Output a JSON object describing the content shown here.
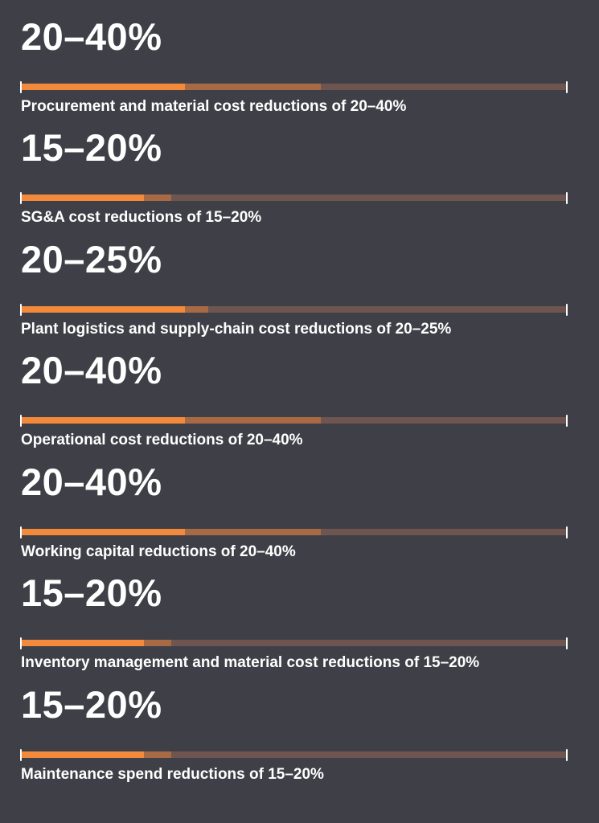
{
  "chart_data": {
    "type": "bar",
    "scale_max_percent": 100,
    "colors": {
      "background": "#3f4047",
      "fill_low": "#f3893b",
      "fill_range": "#a86a45",
      "track": "#6e5550",
      "text": "#ffffff"
    },
    "items": [
      {
        "value_label": "20–40%",
        "low": 20,
        "high": 40,
        "caption": "Procurement and material cost reductions of 20–40%"
      },
      {
        "value_label": "15–20%",
        "low": 15,
        "high": 20,
        "caption": "SG&A cost reductions of 15–20%"
      },
      {
        "value_label": "20–25%",
        "low": 20,
        "high": 25,
        "caption": "Plant logistics and supply-chain cost reductions of 20–25%"
      },
      {
        "value_label": "20–40%",
        "low": 20,
        "high": 40,
        "caption": "Operational cost reductions of 20–40%"
      },
      {
        "value_label": "20–40%",
        "low": 20,
        "high": 40,
        "caption": "Working capital reductions of 20–40%"
      },
      {
        "value_label": "15–20%",
        "low": 15,
        "high": 20,
        "caption": "Inventory management and material cost reductions of 15–20%"
      },
      {
        "value_label": "15–20%",
        "low": 15,
        "high": 20,
        "caption": "Maintenance spend reductions of 15–20%"
      }
    ]
  }
}
